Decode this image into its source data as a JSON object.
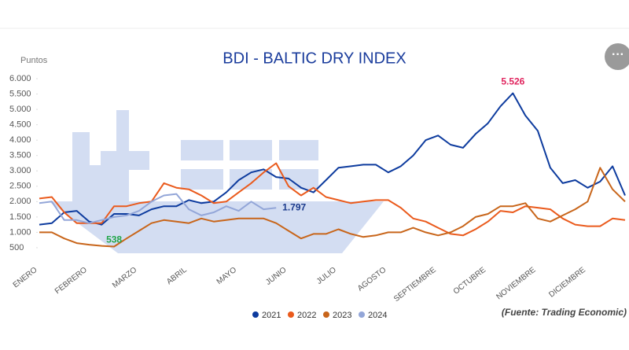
{
  "chart_data": {
    "type": "line",
    "title": "BDI - BALTIC DRY INDEX",
    "y_axis_label": "Puntos",
    "source": "(Fuente: Trading Economic)",
    "categories": [
      "ENERO",
      null,
      null,
      null,
      "FEBRERO",
      null,
      null,
      null,
      "MARZO",
      null,
      null,
      null,
      "ABRIL",
      null,
      null,
      null,
      "MAYO",
      null,
      null,
      null,
      "JUNIO",
      null,
      null,
      null,
      "JULIO",
      null,
      null,
      null,
      "AGOSTO",
      null,
      null,
      null,
      "SEPTIEMBRE",
      null,
      null,
      null,
      "OCTUBRE",
      null,
      null,
      null,
      "NOVIEMBRE",
      null,
      null,
      null,
      "DICIEMBRE",
      null,
      null,
      null
    ],
    "ylim": [
      0,
      6000
    ],
    "yticks": [
      {
        "value": 500,
        "label": "500"
      },
      {
        "value": 1000,
        "label": "1.000"
      },
      {
        "value": 1500,
        "label": "1.500"
      },
      {
        "value": 2000,
        "label": "2.000"
      },
      {
        "value": 2500,
        "label": "2.500"
      },
      {
        "value": 3000,
        "label": "3.000"
      },
      {
        "value": 3500,
        "label": "3.500"
      },
      {
        "value": 4000,
        "label": "4.000"
      },
      {
        "value": 4500,
        "label": "4.500"
      },
      {
        "value": 5000,
        "label": "5.000"
      },
      {
        "value": 5500,
        "label": "5.500"
      },
      {
        "value": 6000,
        "label": "6.000"
      }
    ],
    "grid": false,
    "legend": "bottom",
    "series": [
      {
        "name": "2021",
        "color": "#0d3b9e",
        "values": [
          1250,
          1300,
          1650,
          1700,
          1350,
          1250,
          1600,
          1600,
          1550,
          1750,
          1850,
          1850,
          2050,
          1950,
          2000,
          2300,
          2700,
          2950,
          3050,
          2800,
          2750,
          2450,
          2300,
          2700,
          3100,
          3150,
          3200,
          3200,
          2950,
          3150,
          3500,
          4000,
          4150,
          3850,
          3750,
          4200,
          4550,
          5100,
          5526,
          4800,
          4300,
          3100,
          2600,
          2700,
          2450,
          2650,
          3150,
          2200
        ],
        "value_labels": [
          null,
          null,
          null,
          null,
          null,
          null,
          null,
          null,
          null,
          null,
          null,
          null,
          null,
          null,
          null,
          null,
          null,
          null,
          null,
          null,
          null,
          null,
          null,
          null,
          null,
          null,
          null,
          null,
          null,
          null,
          null,
          null,
          null,
          null,
          null,
          null,
          null,
          null,
          "5.526",
          null,
          null,
          null,
          null,
          null,
          null,
          null,
          null,
          null
        ],
        "value_label_color": "#e0245e"
      },
      {
        "name": "2022",
        "color": "#ea5a1c",
        "values": [
          2100,
          2150,
          1650,
          1300,
          1300,
          1300,
          1850,
          1850,
          1950,
          2000,
          2600,
          2450,
          2400,
          2200,
          1950,
          2000,
          2300,
          2600,
          2950,
          3250,
          2500,
          2200,
          2450,
          2150,
          2050,
          1950,
          2000,
          2050,
          2050,
          1800,
          1450,
          1350,
          1150,
          950,
          900,
          1100,
          1350,
          1700,
          1650,
          1850,
          1800,
          1750,
          1450,
          1250,
          1200,
          1200,
          1450,
          1400
        ]
      },
      {
        "name": "2023",
        "color": "#c8651a",
        "values": [
          1000,
          1000,
          800,
          650,
          600,
          560,
          538,
          800,
          1050,
          1300,
          1400,
          1350,
          1300,
          1450,
          1350,
          1400,
          1450,
          1450,
          1450,
          1300,
          1050,
          800,
          950,
          950,
          1100,
          950,
          850,
          900,
          1000,
          1000,
          1150,
          1000,
          900,
          1000,
          1200,
          1500,
          1600,
          1850,
          1850,
          1950,
          1450,
          1350,
          1550,
          1750,
          2000,
          3100,
          2400,
          2000
        ],
        "value_labels": [
          null,
          null,
          null,
          null,
          null,
          null,
          "538",
          null,
          null,
          null,
          null,
          null,
          null,
          null,
          null,
          null,
          null,
          null,
          null,
          null,
          null,
          null,
          null,
          null,
          null,
          null,
          null,
          null,
          null,
          null,
          null,
          null,
          null,
          null,
          null,
          null,
          null,
          null,
          null,
          null,
          null,
          null,
          null,
          null,
          null,
          null,
          null,
          null
        ],
        "value_label_color": "#22a64a"
      },
      {
        "name": "2024",
        "color": "#93a6d8",
        "values": [
          1950,
          2000,
          1400,
          1400,
          1300,
          1400,
          1500,
          1550,
          1700,
          2000,
          2200,
          2250,
          1750,
          1550,
          1650,
          1850,
          1700,
          2000,
          1750,
          1797,
          null,
          null,
          null,
          null,
          null,
          null,
          null,
          null,
          null,
          null,
          null,
          null,
          null,
          null,
          null,
          null,
          null,
          null,
          null,
          null,
          null,
          null,
          null,
          null,
          null,
          null,
          null,
          null
        ],
        "value_labels": [
          null,
          null,
          null,
          null,
          null,
          null,
          null,
          null,
          null,
          null,
          null,
          null,
          null,
          null,
          null,
          null,
          null,
          null,
          null,
          "1.797",
          null,
          null,
          null,
          null,
          null,
          null,
          null,
          null,
          null,
          null,
          null,
          null,
          null,
          null,
          null,
          null,
          null,
          null,
          null,
          null,
          null,
          null,
          null,
          null,
          null,
          null,
          null,
          null
        ],
        "value_label_color": "#1b3a8c"
      }
    ]
  }
}
